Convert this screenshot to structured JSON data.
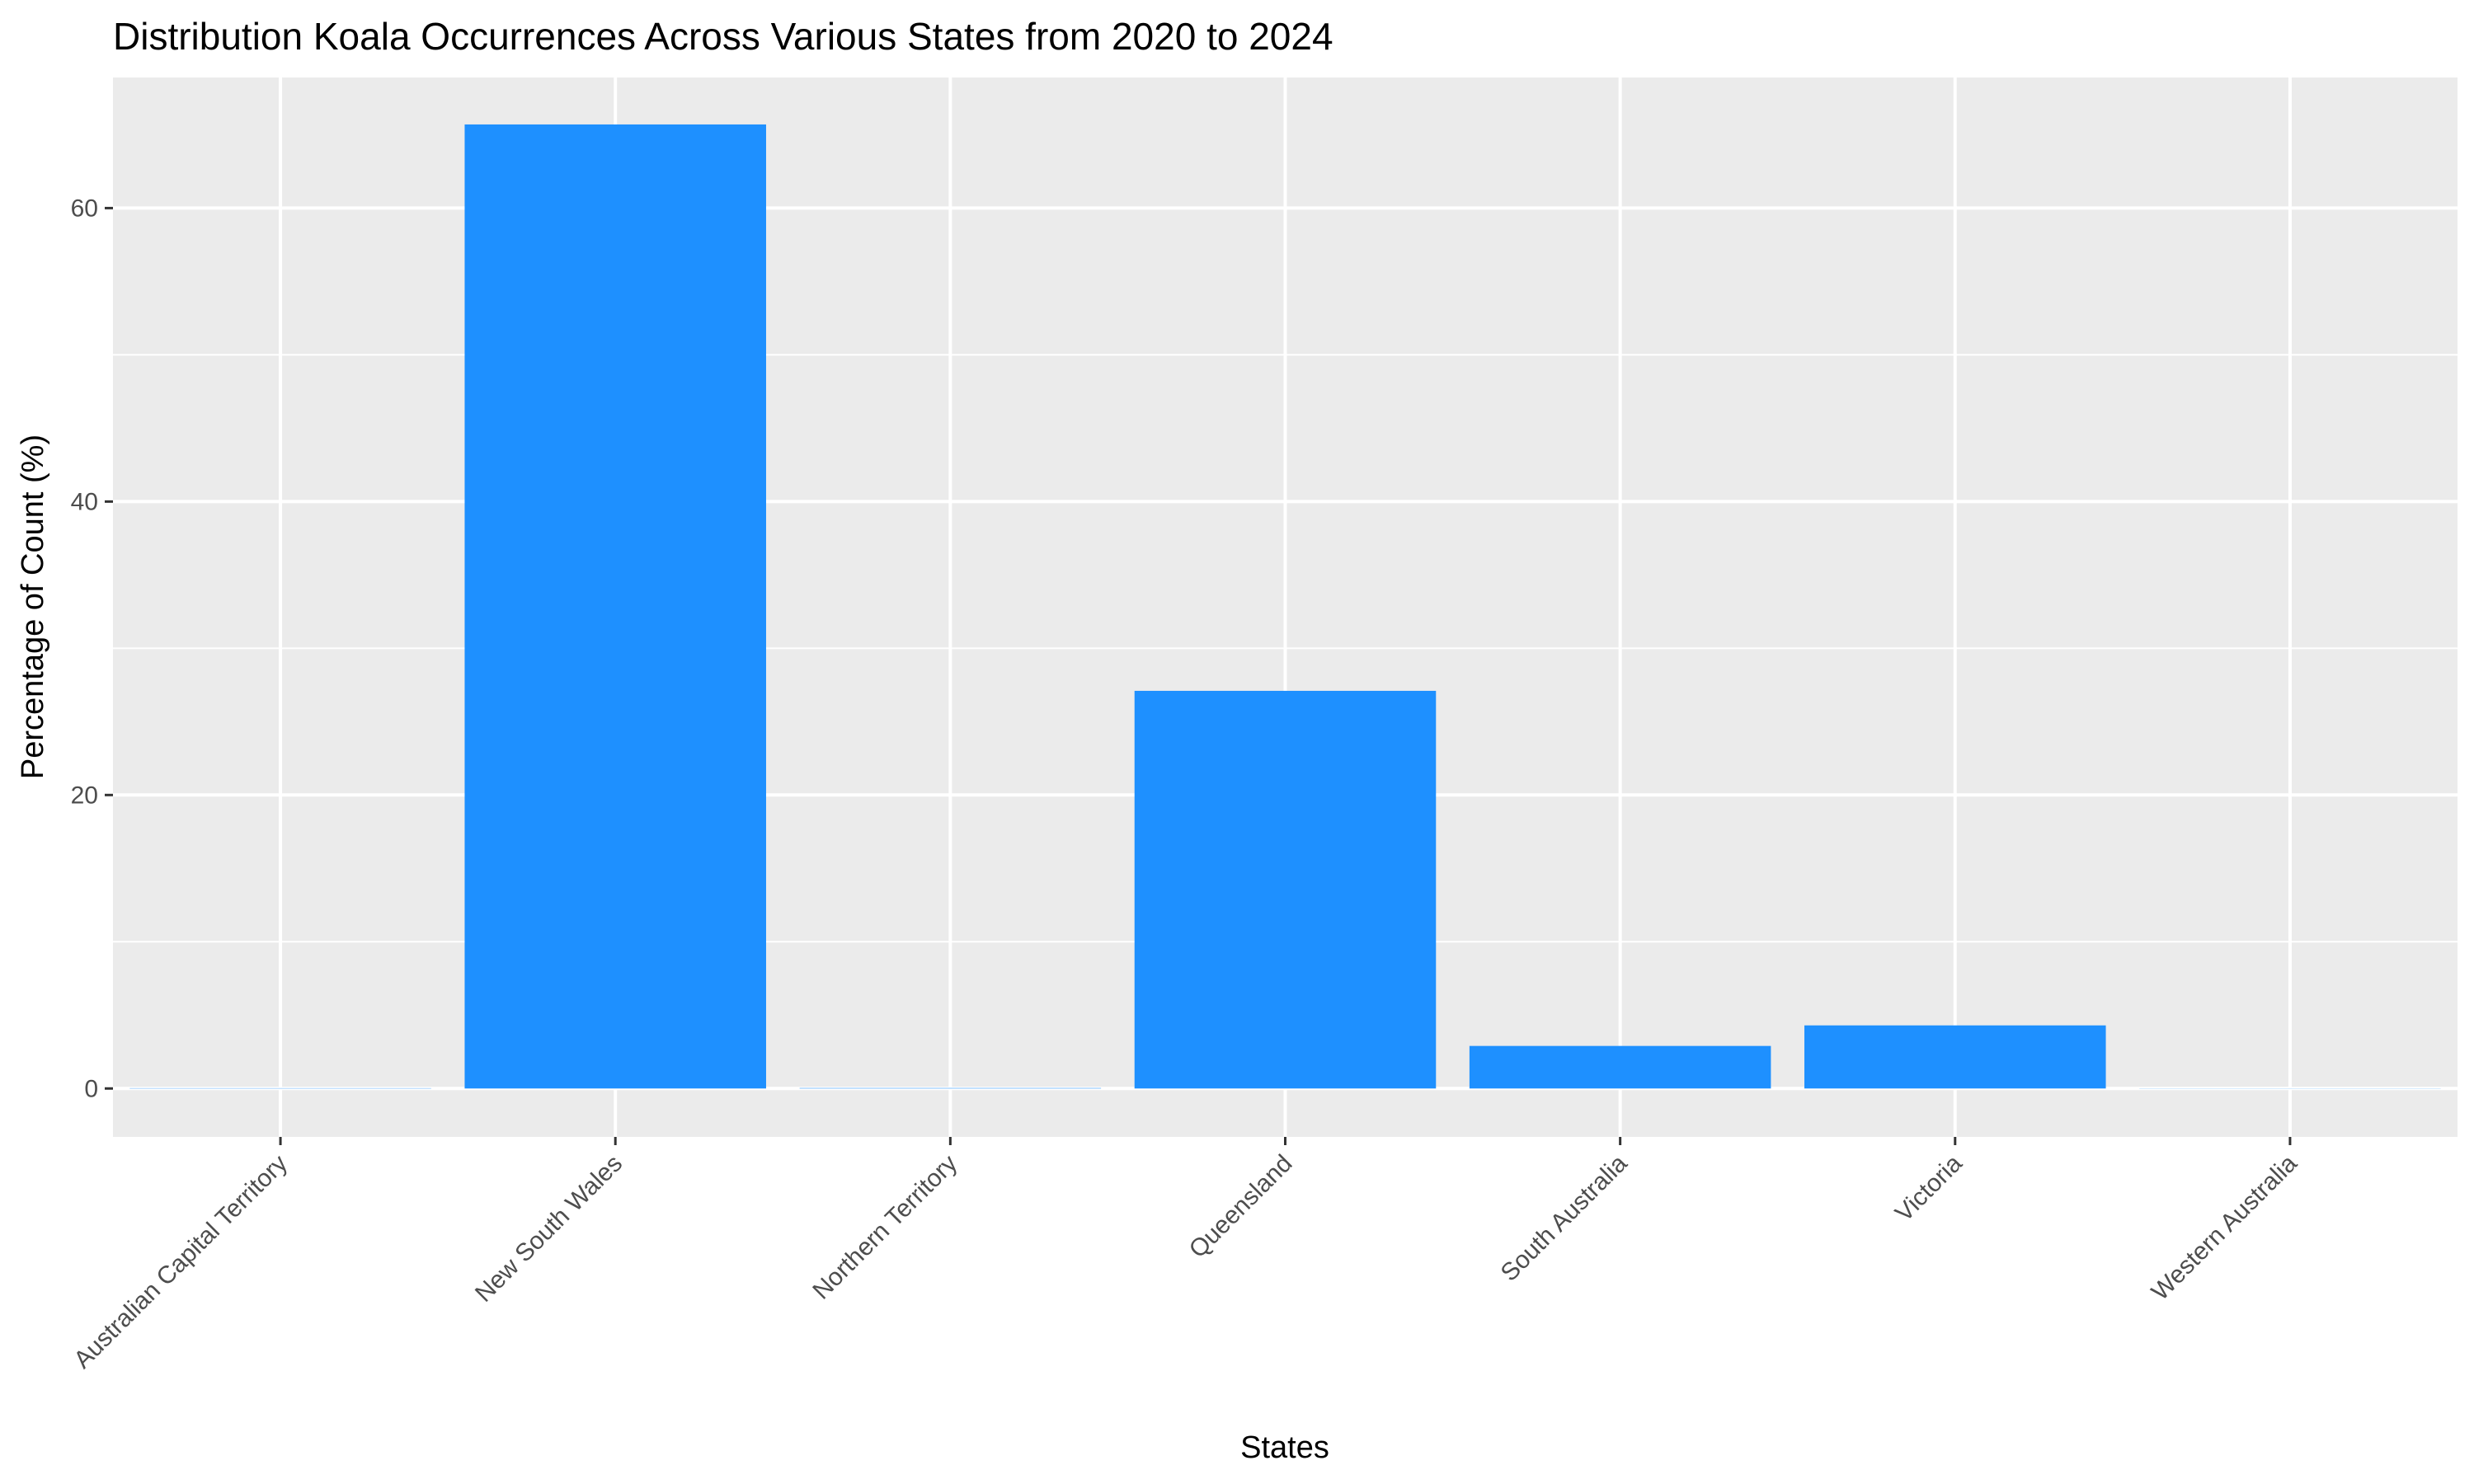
{
  "chart_data": {
    "type": "bar",
    "title": "Distribution Koala Occurrences Across Various States from 2020 to 2024",
    "xlabel": "States",
    "ylabel": "Percentage of Count (%)",
    "categories": [
      "Australian Capital Territory",
      "New South Wales",
      "Northern Territory",
      "Queensland",
      "South Australia",
      "Victoria",
      "Western Australia"
    ],
    "values": [
      0.02,
      65.7,
      0.03,
      27.1,
      2.9,
      4.3,
      0.01
    ],
    "ylim": [
      -3.3,
      68.9
    ],
    "yticks": [
      0,
      20,
      40,
      60
    ],
    "grid": true,
    "legend": "none",
    "colors": {
      "bar": "#1E90FF",
      "panel": "#EBEBEB",
      "grid": "#FFFFFF",
      "tick": "#333333"
    }
  }
}
